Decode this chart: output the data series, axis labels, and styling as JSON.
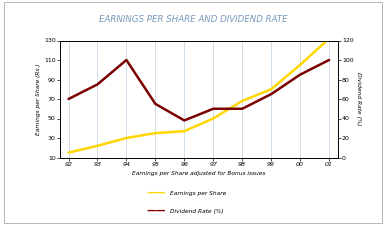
{
  "title": "EARNINGS PER SHARE AND DIVIDEND RATE",
  "years": [
    "92",
    "93",
    "94",
    "95",
    "96",
    "97",
    "98",
    "99",
    "00",
    "01"
  ],
  "eps_values": [
    15,
    22,
    30,
    35,
    37,
    50,
    68,
    80,
    105,
    132
  ],
  "div_values": [
    60,
    75,
    100,
    55,
    38,
    50,
    50,
    65,
    85,
    100
  ],
  "eps_color": "#FFD700",
  "div_color": "#7B0000",
  "left_ylabel": "Earnings per Share (Rs.)",
  "right_ylabel": "Dividend Rate (%)",
  "xlabel": "Earnings per Share adjusted for Bonus issues",
  "legend_eps": "Earnings per Share",
  "legend_div": "Dividend Rate (%)",
  "left_ylim": [
    10,
    130
  ],
  "right_ylim": [
    0,
    120
  ],
  "left_yticks": [
    10,
    30,
    50,
    70,
    90,
    110,
    130
  ],
  "right_yticks": [
    0,
    20,
    40,
    60,
    80,
    100,
    120
  ],
  "title_color": "#7799BB",
  "background_color": "#FFFFFF",
  "plot_bg_color": "#FFFFFF",
  "grid_color": "#C8D8E8",
  "linewidth": 1.8,
  "outer_box_color": "#AAAAAA"
}
